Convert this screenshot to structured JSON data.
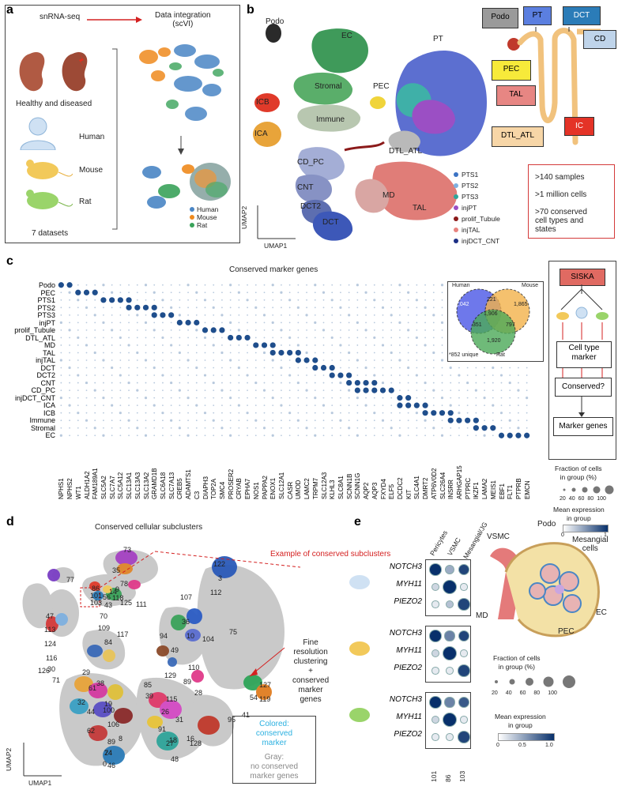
{
  "panels": {
    "a": "a",
    "b": "b",
    "c": "c",
    "d": "d",
    "e": "e"
  },
  "panel_a": {
    "snrna": "snRNA-seq",
    "integration": "Data integration\n(scVI)",
    "healthy": "Healthy and diseased",
    "species": [
      "Human",
      "Mouse",
      "Rat"
    ],
    "datasets": "7 datasets",
    "legend": [
      {
        "label": "Human",
        "color": "#4a86c5"
      },
      {
        "label": "Mouse",
        "color": "#ef8a1e"
      },
      {
        "label": "Rat",
        "color": "#3aa35a"
      }
    ]
  },
  "panel_b": {
    "clusters": [
      "Podo",
      "EC",
      "PT",
      "Stromal",
      "PEC",
      "ICB",
      "Immune",
      "ICA",
      "DTL_ATL",
      "CD_PC",
      "CNT",
      "DCT2",
      "DCT",
      "MD",
      "TAL"
    ],
    "axis_y": "UMAP2",
    "axis_x": "UMAP1",
    "legend": [
      {
        "label": "PTS1",
        "color": "#3b73c4"
      },
      {
        "label": "PTS2",
        "color": "#7fb0e0"
      },
      {
        "label": "PTS3",
        "color": "#2fa59a"
      },
      {
        "label": "injPT",
        "color": "#9b4fc4"
      },
      {
        "label": "prolif_Tubule",
        "color": "#8b1a1a"
      },
      {
        "label": "injTAL",
        "color": "#e8837f"
      },
      {
        "label": "injDCT_CNT",
        "color": "#1c2f85"
      }
    ],
    "nephron_labels": [
      "Podo",
      "PT",
      "DCT",
      "CD",
      "PEC",
      "TAL",
      "IC",
      "DTL_ATL"
    ],
    "stats": [
      ">140 samples",
      ">1 million cells",
      ">70 conserved\ncell types and\nstates"
    ]
  },
  "panel_c": {
    "title": "Conserved marker genes",
    "rows": [
      "Podo",
      "PEC",
      "PTS1",
      "PTS2",
      "PTS3",
      "injPT",
      "prolif_Tubule",
      "DTL_ATL",
      "MD",
      "TAL",
      "injTAL",
      "DCT",
      "DCT2",
      "CNT",
      "CD_PC",
      "injDCT_CNT",
      "ICA",
      "ICB",
      "Immune",
      "Stromal",
      "EC"
    ],
    "genes": [
      "NPHS1",
      "NPHS2",
      "WT1",
      "ALDH1A2",
      "FAM189A1",
      "SLC5A2",
      "SLC7A7",
      "SLC5A12",
      "SLC13A1",
      "SLC13A3",
      "SLC13A2",
      "GRAMD1B",
      "SLC6A18",
      "SLC7A13",
      "CREB5",
      "ADAMTS1",
      "C3",
      "DIAPH3",
      "TOP2A",
      "SMC4",
      "PROSER2",
      "CRYAB",
      "EPHA7",
      "NOS1",
      "PAPPA2",
      "ENOX1",
      "SLC12A1",
      "CASR",
      "UMOD",
      "LAMC2",
      "TRPM7",
      "SLC12A3",
      "KLHL3",
      "SLC8A1",
      "SCNN1B",
      "SCNN1G",
      "AQP2",
      "AQP3",
      "FXYD4",
      "ELF5",
      "DCDC2",
      "KIT",
      "SLC4A1",
      "DMRT2",
      "ATP6V0D2",
      "SLC26A4",
      "INSRR",
      "ARHGAP15",
      "PTPRC",
      "IKZF1",
      "LAMA2",
      "MEIS1",
      "EBF1",
      "FLT1",
      "PTPRB",
      "EMCN"
    ],
    "venn": {
      "human": "Human",
      "mouse": "Mouse",
      "rat": "Rat",
      "n_h": "2,042",
      "n_m": "1,865",
      "n_r": "1,920",
      "n_hm": "221",
      "n_hr": "351",
      "n_mr": "797",
      "n_all": "1,906",
      "unique": "*852 unique"
    },
    "flow": {
      "siska": "SISKA",
      "cell_type": "Cell type\nmarker",
      "conserved": "Conserved?",
      "marker_genes": "Marker genes"
    },
    "size_legend_title": "Fraction of cells\nin group (%)",
    "size_ticks": [
      "20",
      "40",
      "60",
      "80",
      "100"
    ],
    "color_legend_title": "Mean expression\nin group",
    "color_ticks": [
      "0",
      "1"
    ]
  },
  "panel_d": {
    "title": "Conserved cellular subclusters",
    "example": "Example of conserved subclusters",
    "fine": "Fine\nresolution\nclustering\n+\nconserved\nmarker\ngenes",
    "colored": "Colored:\nconserved\nmarker",
    "gray": "Gray:\nno conserved\nmarker genes",
    "axis_y": "UMAP2",
    "axis_x": "UMAP1",
    "numbers": [
      "73",
      "35",
      "77",
      "78",
      "14",
      "118",
      "125",
      "111",
      "86",
      "101",
      "103",
      "9",
      "56",
      "43",
      "122",
      "3",
      "112",
      "107",
      "47",
      "113",
      "124",
      "116",
      "126",
      "30",
      "71",
      "70",
      "109",
      "117",
      "84",
      "94",
      "36",
      "10",
      "49",
      "104",
      "75",
      "85",
      "129",
      "110",
      "89",
      "28",
      "127",
      "119",
      "54",
      "41",
      "29",
      "61",
      "38",
      "19",
      "32",
      "44",
      "100",
      "106",
      "62",
      "89",
      "24",
      "8",
      "39",
      "115",
      "26",
      "31",
      "91",
      "16",
      "18",
      "128",
      "95",
      "27",
      "48",
      "74",
      "46",
      "0"
    ]
  },
  "panel_e": {
    "cols": [
      "Pericytes",
      "VSMC",
      "Mesangial/JG"
    ],
    "genes": [
      "NOTCH3",
      "MYH11",
      "PIEZO2"
    ],
    "x_ticks": [
      "101",
      "86",
      "103"
    ],
    "diagram_labels": [
      "VSMC",
      "Podo",
      "Mesangial\ncells",
      "MD",
      "EC",
      "PEC"
    ],
    "size_legend_title": "Fraction of cells\nin group (%)",
    "size_ticks": [
      "20",
      "40",
      "60",
      "80",
      "100"
    ],
    "color_legend_title": "Mean expression\nin group",
    "color_ticks": [
      "0",
      "0.5",
      "1.0"
    ]
  }
}
